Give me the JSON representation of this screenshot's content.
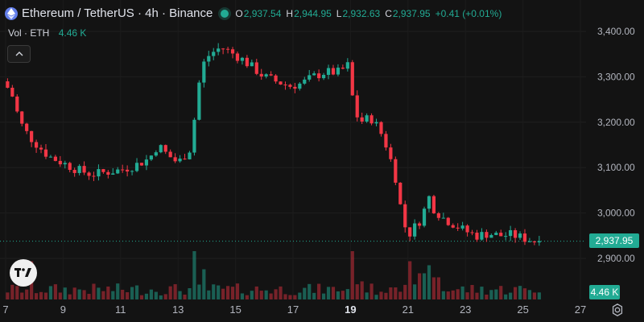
{
  "header": {
    "title": "Ethereum / TetherUS · 4h · Binance",
    "ohlc": [
      {
        "key": "O",
        "value": "2,937.54"
      },
      {
        "key": "H",
        "value": "2,944.95"
      },
      {
        "key": "L",
        "value": "2,932.63"
      },
      {
        "key": "C",
        "value": "2,937.95"
      },
      {
        "key": "",
        "value": "+0.41 (+0.01%)"
      }
    ]
  },
  "volume_legend": {
    "label": "Vol · ETH",
    "value": "4.46 K"
  },
  "price_axis": {
    "current_price_label": "2,937.95",
    "volume_label": "4.46 K"
  },
  "colors": {
    "up": "#22ab94",
    "down": "#f23645",
    "bg": "#131313"
  },
  "icons": {
    "symbol": "ethereum-icon",
    "status": "market-open-dot",
    "collapse": "chevron-up-icon",
    "logo": "tradingview-logo",
    "settings": "gear-icon"
  },
  "chart_data": {
    "type": "candlestick",
    "interval": "4h",
    "y_ticks": [
      "3,400.00",
      "3,300.00",
      "3,200.00",
      "3,100.00",
      "3,000.00",
      "2,900.00"
    ],
    "y_tick_values": [
      3400,
      3300,
      3200,
      3100,
      3000,
      2900
    ],
    "ylim": [
      2860,
      3420
    ],
    "x_ticks": [
      "7",
      "9",
      "11",
      "13",
      "15",
      "17",
      "19",
      "21",
      "23",
      "25",
      "27"
    ],
    "x_tick_days": [
      7,
      9,
      11,
      13,
      15,
      17,
      19,
      21,
      23,
      25,
      27
    ],
    "bold_x_tick": "19",
    "current_price": 2937.95,
    "anchors_close": [
      [
        6.9,
        3290
      ],
      [
        7.2,
        3265
      ],
      [
        7.5,
        3200
      ],
      [
        7.8,
        3170
      ],
      [
        8.1,
        3150
      ],
      [
        8.5,
        3125
      ],
      [
        9.0,
        3110
      ],
      [
        9.5,
        3095
      ],
      [
        10.0,
        3085
      ],
      [
        10.5,
        3090
      ],
      [
        11.0,
        3095
      ],
      [
        11.5,
        3105
      ],
      [
        12.0,
        3120
      ],
      [
        12.3,
        3150
      ],
      [
        12.6,
        3130
      ],
      [
        13.0,
        3110
      ],
      [
        13.4,
        3140
      ],
      [
        13.6,
        3220
      ],
      [
        13.8,
        3320
      ],
      [
        14.1,
        3350
      ],
      [
        14.5,
        3365
      ],
      [
        14.8,
        3355
      ],
      [
        15.2,
        3340
      ],
      [
        15.6,
        3320
      ],
      [
        16.0,
        3300
      ],
      [
        16.4,
        3290
      ],
      [
        16.9,
        3280
      ],
      [
        17.3,
        3285
      ],
      [
        17.7,
        3300
      ],
      [
        18.1,
        3310
      ],
      [
        18.6,
        3310
      ],
      [
        18.9,
        3325
      ],
      [
        19.0,
        3290
      ],
      [
        19.1,
        3240
      ],
      [
        19.3,
        3200
      ],
      [
        19.7,
        3210
      ],
      [
        20.0,
        3185
      ],
      [
        20.3,
        3140
      ],
      [
        20.6,
        3070
      ],
      [
        20.8,
        2990
      ],
      [
        21.0,
        2950
      ],
      [
        21.3,
        2975
      ],
      [
        21.5,
        2990
      ],
      [
        21.7,
        3040
      ],
      [
        21.9,
        3010
      ],
      [
        22.2,
        2990
      ],
      [
        22.6,
        2975
      ],
      [
        23.0,
        2960
      ],
      [
        23.4,
        2950
      ],
      [
        23.8,
        2955
      ],
      [
        24.2,
        2950
      ],
      [
        24.6,
        2952
      ],
      [
        25.0,
        2945
      ],
      [
        25.4,
        2938
      ],
      [
        25.6,
        2937.95
      ]
    ],
    "volume_max": 100,
    "volume_spikes": [
      [
        7.9,
        95
      ],
      [
        13.6,
        120
      ],
      [
        13.9,
        75
      ],
      [
        19.0,
        120
      ],
      [
        19.4,
        45
      ],
      [
        20.5,
        30
      ],
      [
        21.1,
        95
      ],
      [
        21.5,
        65
      ],
      [
        21.8,
        85
      ],
      [
        22.0,
        55
      ]
    ]
  }
}
